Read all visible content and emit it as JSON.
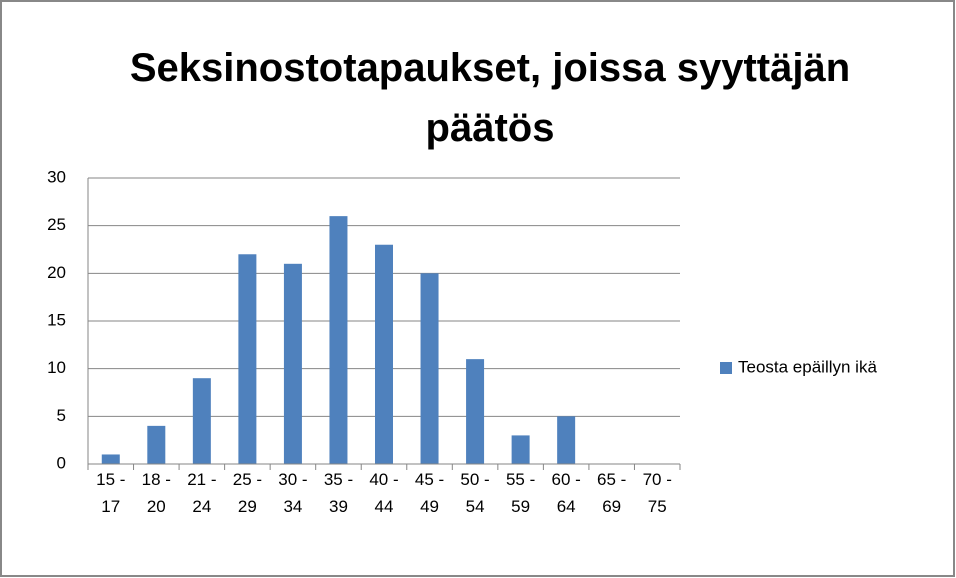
{
  "chart_data": {
    "type": "bar",
    "title": "Seksinostotapaukset, joissa syyttäjän päätös",
    "categories": [
      "15 - 17",
      "18 - 20",
      "21 - 24",
      "25 - 29",
      "30 - 34",
      "35 - 39",
      "40 - 44",
      "45 - 49",
      "50 - 54",
      "55 - 59",
      "60 - 64",
      "65 - 69",
      "70 - 75"
    ],
    "series": [
      {
        "name": "Teosta epäillyn ikä",
        "color": "#4f81bd",
        "values": [
          1,
          4,
          9,
          22,
          21,
          26,
          23,
          20,
          11,
          3,
          5,
          0,
          0
        ]
      }
    ],
    "ylim": [
      0,
      30
    ],
    "yticks": [
      0,
      5,
      10,
      15,
      20,
      25,
      30
    ],
    "grid": true,
    "legend": "right"
  }
}
